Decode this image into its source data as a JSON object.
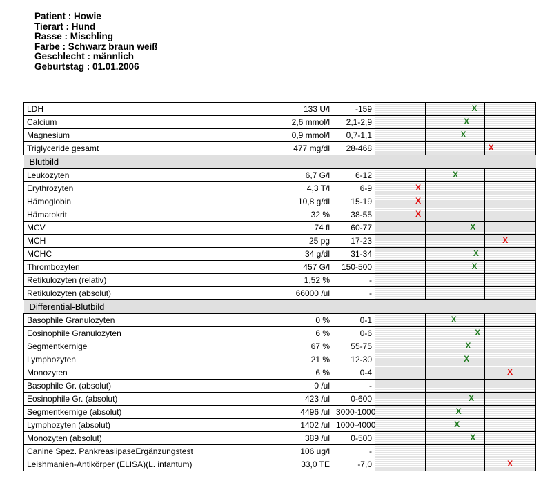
{
  "patient": [
    "Patient : Howie",
    "Tierart : Hund",
    "Rasse : Mischling",
    "Farbe : Schwarz braun weiß",
    "Geschlecht : männlich",
    "Geburtstag : 01.01.2006"
  ],
  "colors": {
    "normal": "#1e7a1e",
    "abnormal": "#e01010"
  },
  "rows": [
    {
      "name": "LDH",
      "value": "133 U/l",
      "range": "-159",
      "marker": "X",
      "status": "normal",
      "position": 0.62
    },
    {
      "name": "Calcium",
      "value": "2,6 mmol/l",
      "range": "2,1-2,9",
      "marker": "X",
      "status": "normal",
      "position": 0.57
    },
    {
      "name": "Magnesium",
      "value": "0,9 mmol/l",
      "range": "0,7-1,1",
      "marker": "X",
      "status": "normal",
      "position": 0.55
    },
    {
      "name": "Triglyceride gesamt",
      "value": "477 mg/dl",
      "range": "28-468",
      "marker": "X",
      "status": "abnormal",
      "position": 0.72
    },
    {
      "section": "Blutbild"
    },
    {
      "name": "Leukozyten",
      "value": "6,7 G/l",
      "range": "6-12",
      "marker": "X",
      "status": "normal",
      "position": 0.5
    },
    {
      "name": "Erythrozyten",
      "value": "4,3 T/l",
      "range": "6-9",
      "marker": "X",
      "status": "abnormal",
      "position": 0.27
    },
    {
      "name": "Hämoglobin",
      "value": "10,8 g/dl",
      "range": "15-19",
      "marker": "X",
      "status": "abnormal",
      "position": 0.27
    },
    {
      "name": "Hämatokrit",
      "value": "32 %",
      "range": "38-55",
      "marker": "X",
      "status": "abnormal",
      "position": 0.27
    },
    {
      "name": "MCV",
      "value": "74 fl",
      "range": "60-77",
      "marker": "X",
      "status": "normal",
      "position": 0.61
    },
    {
      "name": "MCH",
      "value": "25 pg",
      "range": "17-23",
      "marker": "X",
      "status": "abnormal",
      "position": 0.81
    },
    {
      "name": "MCHC",
      "value": "34 g/dl",
      "range": "31-34",
      "marker": "X",
      "status": "normal",
      "position": 0.63
    },
    {
      "name": "Thrombozyten",
      "value": "457 G/l",
      "range": "150-500",
      "marker": "X",
      "status": "normal",
      "position": 0.62
    },
    {
      "name": "Retikulozyten (relativ)",
      "value": "1,52 %",
      "range": "-"
    },
    {
      "name": "Retikulozyten (absolut)",
      "value": "66000 /ul",
      "range": "-"
    },
    {
      "section": "Differential-Blutbild"
    },
    {
      "name": "Basophile Granulozyten",
      "value": "0 %",
      "range": "0-1",
      "marker": "X",
      "status": "normal",
      "position": 0.49
    },
    {
      "name": "Eosinophile Granulozyten",
      "value": "6 %",
      "range": "0-6",
      "marker": "X",
      "status": "normal",
      "position": 0.64
    },
    {
      "name": "Segmentkernige",
      "value": "67 %",
      "range": "55-75",
      "marker": "X",
      "status": "normal",
      "position": 0.58
    },
    {
      "name": "Lymphozyten",
      "value": "21 %",
      "range": "12-30",
      "marker": "X",
      "status": "normal",
      "position": 0.57
    },
    {
      "name": "Monozyten",
      "value": "6 %",
      "range": "0-4",
      "marker": "X",
      "status": "abnormal",
      "position": 0.84
    },
    {
      "name": "Basophile Gr. (absolut)",
      "value": "0 /ul",
      "range": "-"
    },
    {
      "name": "Eosinophile Gr. (absolut)",
      "value": "423 /ul",
      "range": "0-600",
      "marker": "X",
      "status": "normal",
      "position": 0.6
    },
    {
      "name": "Segmentkernige (absolut)",
      "value": "4496 /ul",
      "range": "3000-10000",
      "marker": "X",
      "status": "normal",
      "position": 0.52
    },
    {
      "name": "Lymphozyten (absolut)",
      "value": "1402 /ul",
      "range": "1000-4000",
      "marker": "X",
      "status": "normal",
      "position": 0.51
    },
    {
      "name": "Monozyten (absolut)",
      "value": "389 /ul",
      "range": "0-500",
      "marker": "X",
      "status": "normal",
      "position": 0.61
    },
    {
      "name": "Canine Spez. PankreaslipaseErgänzungstest",
      "value": "106 ug/l",
      "range": "-"
    },
    {
      "name": "Leishmanien-Antikörper (ELISA)(L. infantum)",
      "value": "33,0 TE",
      "range": "-7,0",
      "marker": "X",
      "status": "abnormal",
      "position": 0.84
    }
  ]
}
